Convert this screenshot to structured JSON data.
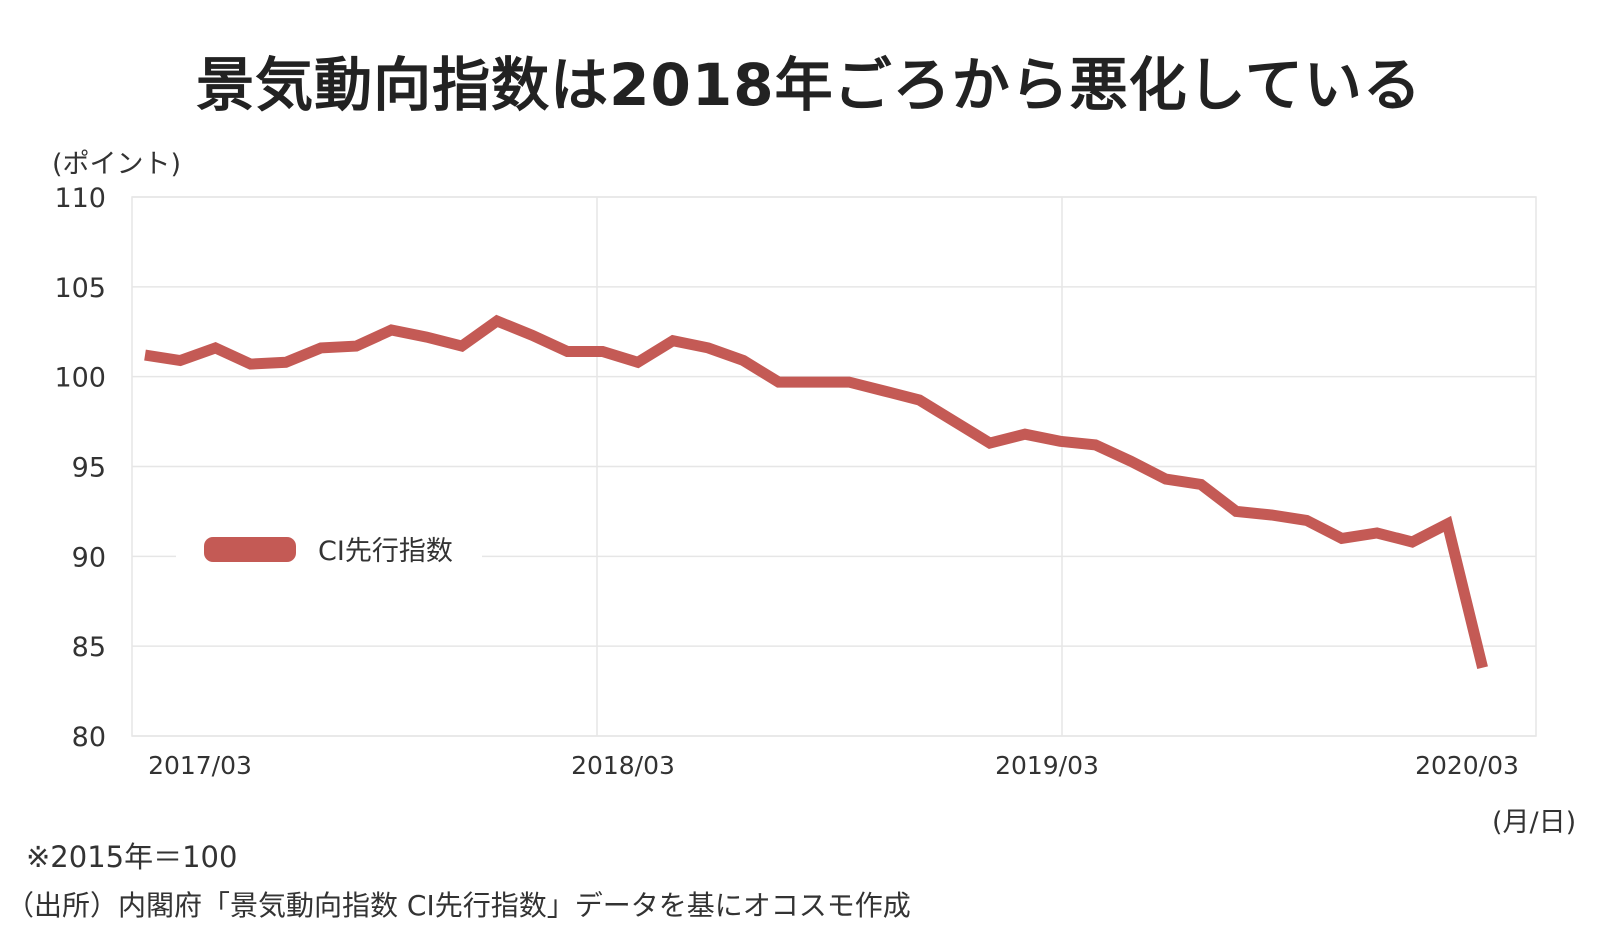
{
  "title": "景気動向指数は2018年ごろから悪化している",
  "y_unit": "(ポイント)",
  "x_unit": "(月/日)",
  "note": "※2015年＝100",
  "source": "（出所）内閣府「景気動向指数 CI先行指数」データを基にオコスモ作成",
  "colors": {
    "line": "#c45a55",
    "grid": "#e6e6e6",
    "text": "#333333"
  },
  "chart_data": {
    "type": "line",
    "title": "景気動向指数は2018年ごろから悪化している",
    "xlabel": "(月/日)",
    "ylabel": "(ポイント)",
    "ylim": [
      80,
      110
    ],
    "yticks": [
      110,
      105,
      100,
      95,
      90,
      85,
      80
    ],
    "xtick_labels": [
      "2017/03",
      "2018/03",
      "2019/03",
      "2020/03"
    ],
    "grid": true,
    "legend_position": "inside-left",
    "x": [
      "2017/01",
      "2017/02",
      "2017/03",
      "2017/04",
      "2017/05",
      "2017/06",
      "2017/07",
      "2017/08",
      "2017/09",
      "2017/10",
      "2017/11",
      "2017/12",
      "2018/01",
      "2018/02",
      "2018/03",
      "2018/04",
      "2018/05",
      "2018/06",
      "2018/07",
      "2018/08",
      "2018/09",
      "2018/10",
      "2018/11",
      "2018/12",
      "2019/01",
      "2019/02",
      "2019/03",
      "2019/04",
      "2019/05",
      "2019/06",
      "2019/07",
      "2019/08",
      "2019/09",
      "2019/10",
      "2019/11",
      "2019/12",
      "2020/01",
      "2020/02",
      "2020/03"
    ],
    "series": [
      {
        "name": "CI先行指数",
        "values": [
          101.2,
          100.9,
          101.6,
          100.7,
          100.8,
          101.6,
          101.7,
          102.6,
          102.2,
          101.7,
          103.1,
          102.3,
          101.4,
          101.4,
          100.8,
          102.0,
          101.6,
          100.9,
          99.7,
          99.7,
          99.7,
          99.2,
          98.7,
          97.5,
          96.3,
          96.8,
          96.4,
          96.2,
          95.3,
          94.3,
          94.0,
          92.5,
          92.3,
          92.0,
          91.0,
          91.3,
          90.8,
          91.8,
          83.8
        ]
      }
    ],
    "annotations": [
      "※2015年＝100"
    ]
  }
}
